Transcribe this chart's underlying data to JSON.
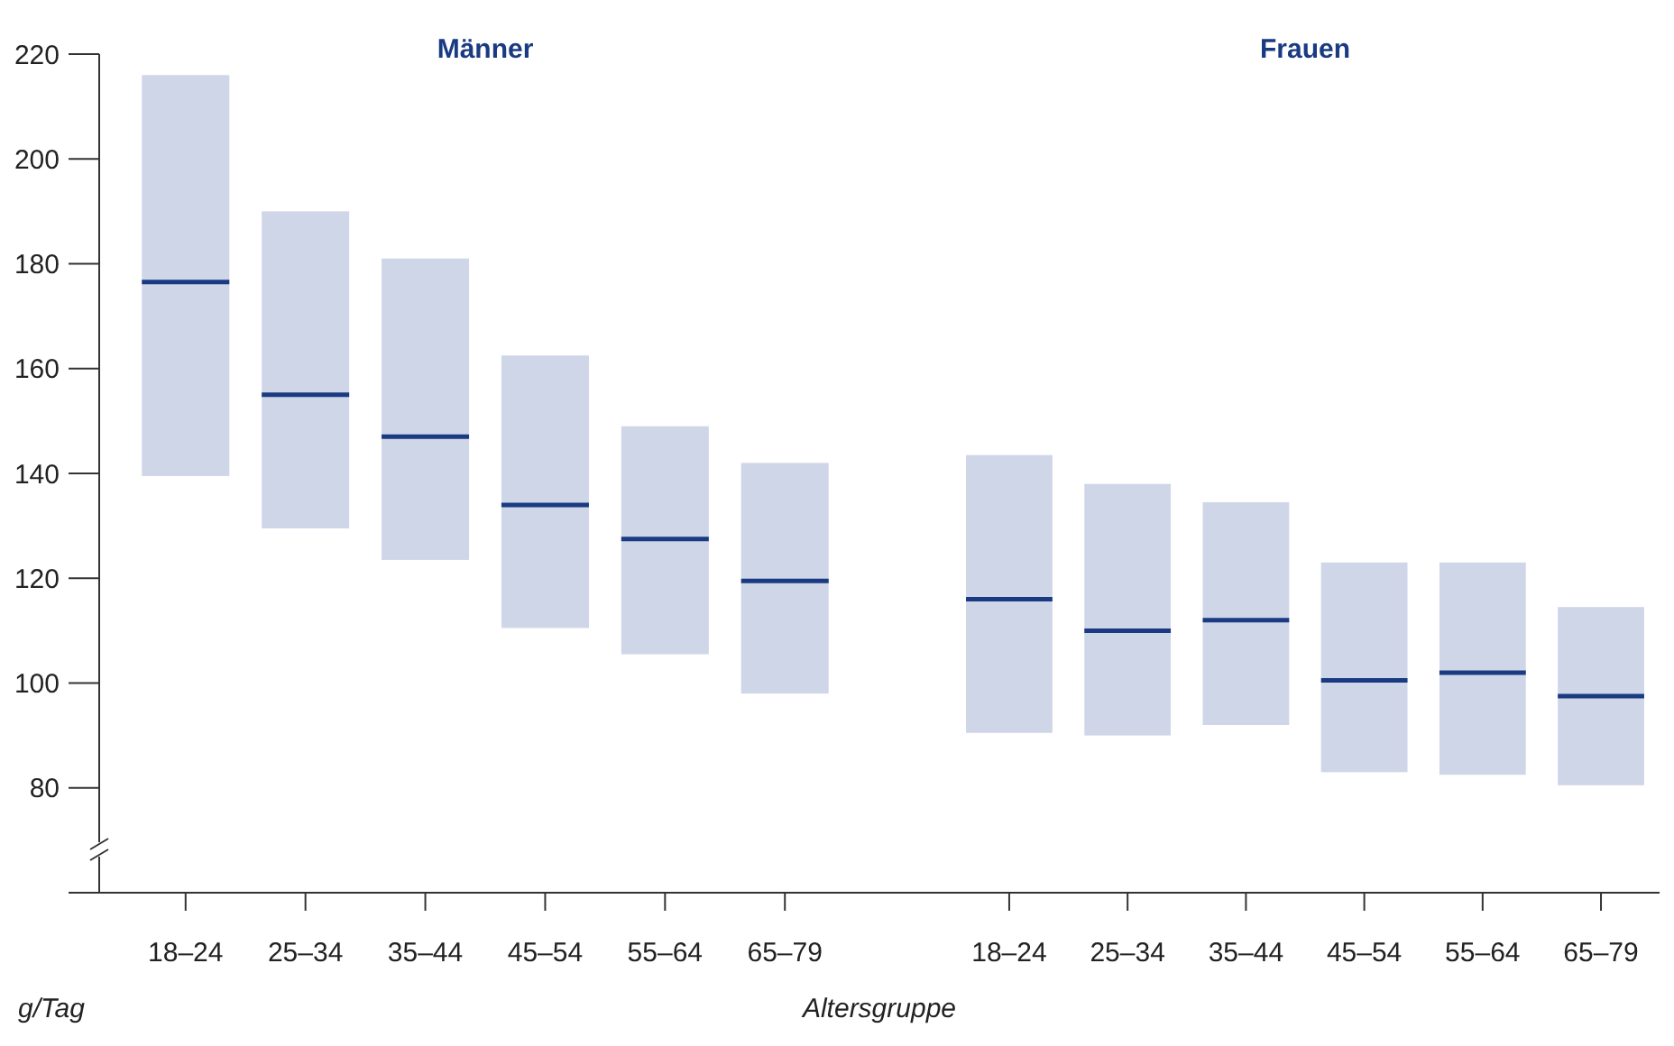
{
  "chart_data": [
    {
      "type": "box",
      "title": "Männer",
      "xlabel": "Altersgruppe",
      "ylabel": "g/Tag",
      "color": "#cfd6e8",
      "categories": [
        "18–24",
        "25–34",
        "35–44",
        "45–54",
        "55–64",
        "65–79"
      ],
      "boxes": [
        {
          "low": 139.5,
          "q1": 139.5,
          "median": 176.5,
          "q3": 216,
          "high": 216
        },
        {
          "low": 129.5,
          "q1": 129.5,
          "median": 155,
          "q3": 190,
          "high": 190
        },
        {
          "low": 123.5,
          "q1": 123.5,
          "median": 147,
          "q3": 181,
          "high": 181
        },
        {
          "low": 110.5,
          "q1": 110.5,
          "median": 134,
          "q3": 162.5,
          "high": 162.5
        },
        {
          "low": 105.5,
          "q1": 105.5,
          "median": 127.5,
          "q3": 149,
          "high": 149
        },
        {
          "low": 98,
          "q1": 98,
          "median": 119.5,
          "q3": 142,
          "high": 142
        }
      ],
      "ylim": [
        60,
        220
      ],
      "yticks": [
        80,
        100,
        120,
        140,
        160,
        180,
        200,
        220
      ],
      "grid": false
    },
    {
      "type": "box",
      "title": "Frauen",
      "color": "#cfd6e8",
      "categories": [
        "18–24",
        "25–34",
        "35–44",
        "45–54",
        "55–64",
        "65–79"
      ],
      "boxes": [
        {
          "low": 90.5,
          "q1": 90.5,
          "median": 116,
          "q3": 143.5,
          "high": 143.5
        },
        {
          "low": 90,
          "q1": 90,
          "median": 110,
          "q3": 138,
          "high": 138
        },
        {
          "low": 92,
          "q1": 92,
          "median": 112,
          "q3": 134.5,
          "high": 134.5
        },
        {
          "low": 83,
          "q1": 83,
          "median": 100.5,
          "q3": 123,
          "high": 123
        },
        {
          "low": 82.5,
          "q1": 82.5,
          "median": 102,
          "q3": 123,
          "high": 123
        },
        {
          "low": 80.5,
          "q1": 80.5,
          "median": 97.5,
          "q3": 114.5,
          "high": 114.5
        }
      ],
      "ylim": [
        60,
        220
      ],
      "tick_labels": "x",
      "grid": false
    }
  ]
}
